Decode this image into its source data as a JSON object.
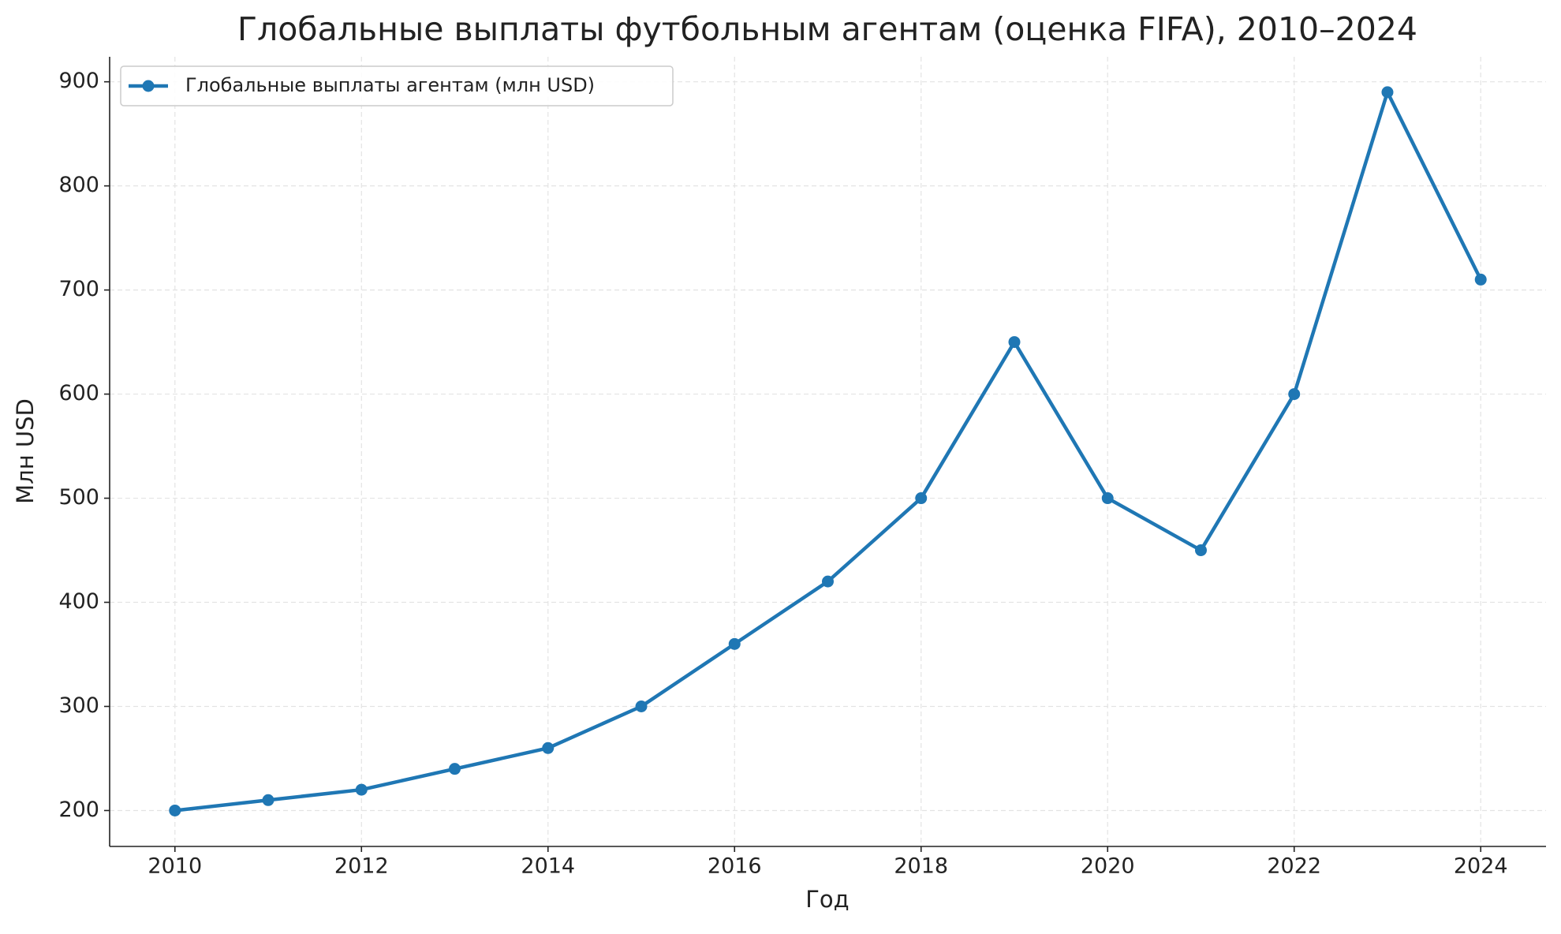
{
  "chart_data": {
    "type": "line",
    "title": "Глобальные выплаты футбольным агентам (оценка FIFA), 2010–2024",
    "x_label": "Год",
    "y_label": "Млн USD",
    "x": [
      2010,
      2011,
      2012,
      2013,
      2014,
      2015,
      2016,
      2017,
      2018,
      2019,
      2020,
      2021,
      2022,
      2023,
      2024
    ],
    "series": [
      {
        "name": "Глобальные выплаты агентам (млн USD)",
        "color": "#1f77b4",
        "values": [
          200,
          210,
          220,
          240,
          260,
          300,
          360,
          420,
          500,
          650,
          500,
          450,
          600,
          890,
          710
        ]
      }
    ],
    "xlim": [
      2009.3,
      2024.7
    ],
    "xticks": [
      2010,
      2012,
      2014,
      2016,
      2018,
      2020,
      2022,
      2024
    ],
    "ylim": [
      165.5,
      924
    ],
    "yticks": [
      200,
      300,
      400,
      500,
      600,
      700,
      800,
      900
    ],
    "grid": true,
    "legend": "upper left"
  }
}
